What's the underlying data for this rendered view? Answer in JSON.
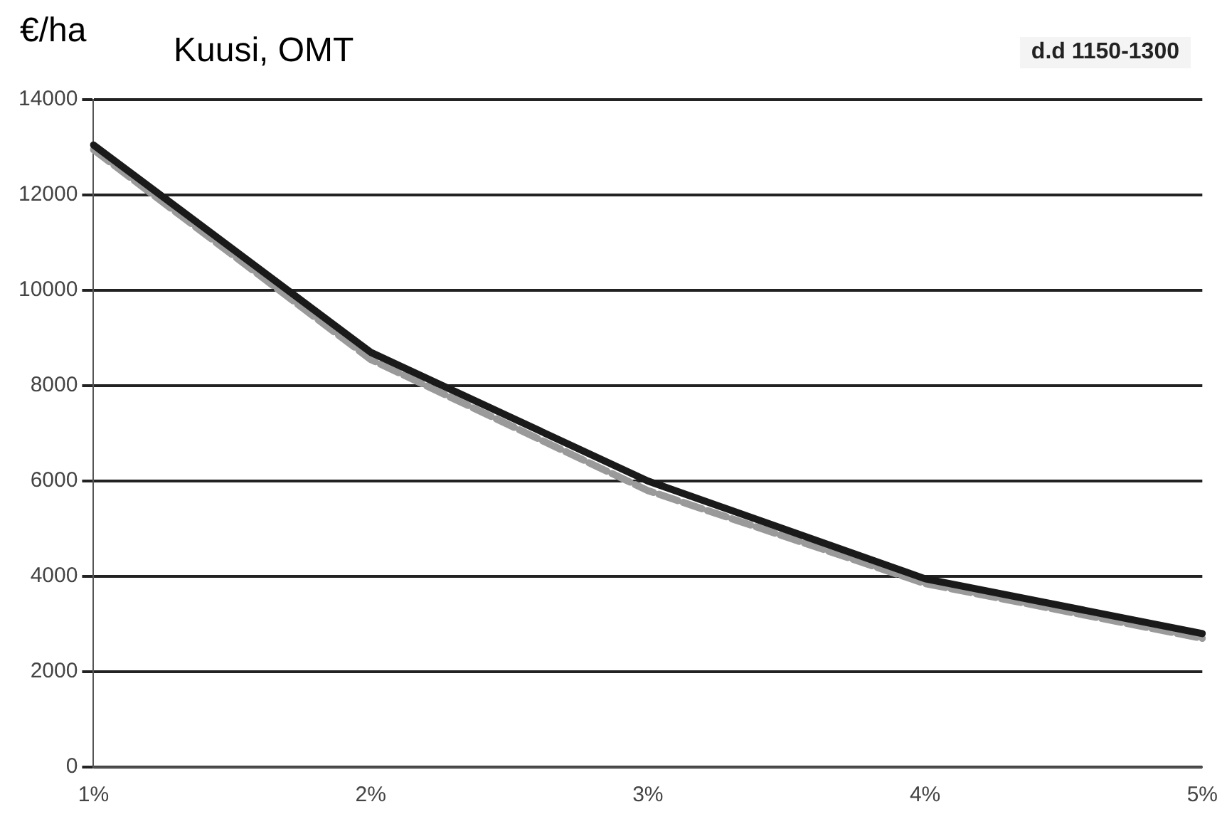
{
  "chart_data": {
    "type": "line",
    "title": "Kuusi, OMT",
    "ylabel": "€/ha",
    "annotations": [
      "d.d 1150-1300"
    ],
    "categories": [
      "1%",
      "2%",
      "3%",
      "4%",
      "5%"
    ],
    "series": [
      {
        "color": "#1a1a1a",
        "values": [
          13050,
          8700,
          6000,
          3950,
          2800
        ],
        "line_style": "solid"
      },
      {
        "color": "#9a9a9a",
        "values": [
          12950,
          8550,
          5800,
          3850,
          2700
        ],
        "line_style": "dashed"
      }
    ],
    "ylim": [
      0,
      14000
    ],
    "yticks": [
      0,
      2000,
      4000,
      6000,
      8000,
      10000,
      12000,
      14000
    ],
    "grid": "y",
    "legend": false,
    "marker": "none"
  }
}
